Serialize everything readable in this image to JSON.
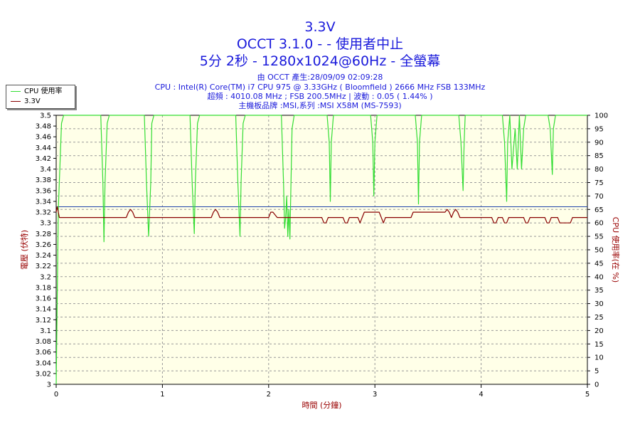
{
  "header": {
    "title": "3.3V",
    "line2": "OCCT 3.1.0 -  - 使用者中止",
    "line3": "5分 2秒 - 1280x1024@60Hz - 全螢幕",
    "info1": "由 OCCT 產生:28/09/09 02:09:28",
    "info2": "CPU : Intel(R) Core(TM) i7 CPU 975 @ 3.33GHz ( Bloomfield ) 2666 MHz FSB 133MHz",
    "info3": "超頻 : 4010.08 MHz ; FSB 200.5MHz | 波動 : 0.05 ( 1.44% )",
    "info4": "主機板品牌 :MSI,系列 :MSI X58M (MS-7593)"
  },
  "legend": {
    "cpu_label": "CPU 使用率",
    "volt_label": "3.3V"
  },
  "colors": {
    "cpu": "#33dd33",
    "volt": "#880000",
    "ref": "#2244aa",
    "title": "#1a1adb",
    "axis_label": "#990000",
    "plot_bg": "#ffffe8",
    "grid": "#999999"
  },
  "chart_data": {
    "type": "line",
    "xlabel": "時間 (分鐘)",
    "ylabel_left": "電壓 (伏特)",
    "ylabel_right": "CPU 使用率(在 %)",
    "xlim": [
      0,
      5
    ],
    "ylim_left": [
      3.0,
      3.5
    ],
    "ylim_right": [
      0,
      100
    ],
    "x_ticks": [
      "0",
      "1",
      "2",
      "3",
      "4",
      "5"
    ],
    "y_left_ticks": [
      "3",
      "3.02",
      "3.04",
      "3.06",
      "3.08",
      "3.1",
      "3.12",
      "3.14",
      "3.16",
      "3.18",
      "3.2",
      "3.22",
      "3.24",
      "3.26",
      "3.28",
      "3.3",
      "3.32",
      "3.34",
      "3.36",
      "3.38",
      "3.4",
      "3.42",
      "3.44",
      "3.46",
      "3.48",
      "3.5"
    ],
    "y_right_ticks": [
      "0",
      "5",
      "10",
      "15",
      "20",
      "25",
      "30",
      "35",
      "40",
      "45",
      "50",
      "55",
      "60",
      "65",
      "70",
      "75",
      "80",
      "85",
      "90",
      "95",
      "100"
    ],
    "grid": true,
    "reference_line": {
      "axis": "left",
      "value": 3.33
    },
    "series": [
      {
        "name": "CPU 使用率",
        "axis": "right",
        "x": [
          0,
          0.02,
          0.05,
          0.07,
          0.42,
          0.44,
          0.45,
          0.46,
          0.48,
          0.5,
          0.83,
          0.85,
          0.87,
          0.89,
          0.9,
          0.92,
          1.26,
          1.28,
          1.3,
          1.31,
          1.33,
          1.35,
          1.69,
          1.71,
          1.73,
          1.74,
          1.76,
          1.78,
          2.12,
          2.14,
          2.15,
          2.16,
          2.17,
          2.18,
          2.19,
          2.2,
          2.21,
          2.22,
          2.24,
          2.26,
          2.55,
          2.57,
          2.58,
          2.59,
          2.61,
          2.63,
          2.96,
          2.98,
          2.99,
          3.0,
          3.02,
          3.04,
          3.38,
          3.4,
          3.41,
          3.42,
          3.44,
          3.46,
          3.79,
          3.81,
          3.83,
          3.84,
          3.85,
          3.87,
          4.2,
          4.22,
          4.24,
          4.25,
          4.27,
          4.29,
          4.32,
          4.34,
          4.36,
          4.38,
          4.4,
          4.42,
          4.63,
          4.65,
          4.67,
          4.68,
          4.7,
          4.72,
          4.99,
          5.0
        ],
        "values": [
          0,
          65,
          97,
          100,
          100,
          75,
          53,
          75,
          97,
          100,
          100,
          75,
          55,
          75,
          97,
          100,
          100,
          75,
          56,
          75,
          97,
          100,
          100,
          75,
          55,
          75,
          97,
          100,
          100,
          75,
          58,
          62,
          70,
          55,
          65,
          54,
          75,
          95,
          100,
          100,
          100,
          90,
          68,
          90,
          100,
          100,
          100,
          90,
          70,
          90,
          100,
          100,
          100,
          90,
          67,
          90,
          100,
          100,
          100,
          90,
          72,
          90,
          100,
          100,
          100,
          90,
          68,
          90,
          100,
          80,
          95,
          80,
          100,
          80,
          95,
          100,
          100,
          95,
          78,
          95,
          100,
          100,
          100,
          100
        ]
      },
      {
        "name": "3.3V",
        "axis": "left",
        "x": [
          0,
          0.01,
          0.02,
          0.03,
          0.66,
          0.68,
          0.7,
          0.72,
          0.74,
          1.46,
          1.48,
          1.5,
          1.52,
          1.54,
          2.0,
          2.02,
          2.04,
          2.06,
          2.08,
          2.5,
          2.52,
          2.54,
          2.56,
          2.6,
          2.7,
          2.72,
          2.74,
          2.76,
          2.8,
          2.84,
          2.86,
          2.88,
          2.9,
          3.04,
          3.06,
          3.08,
          3.1,
          3.12,
          3.34,
          3.36,
          3.38,
          3.4,
          3.42,
          3.66,
          3.68,
          3.7,
          3.72,
          3.74,
          3.76,
          3.78,
          3.8,
          4.1,
          4.12,
          4.14,
          4.16,
          4.2,
          4.22,
          4.24,
          4.26,
          4.4,
          4.42,
          4.44,
          4.46,
          4.48,
          4.6,
          4.62,
          4.64,
          4.66,
          4.72,
          4.74,
          4.76,
          4.84,
          4.86,
          4.88,
          4.9,
          5.0
        ],
        "values": [
          3.32,
          3.33,
          3.32,
          3.31,
          3.31,
          3.32,
          3.325,
          3.32,
          3.31,
          3.31,
          3.32,
          3.325,
          3.32,
          3.31,
          3.31,
          3.32,
          3.32,
          3.315,
          3.31,
          3.31,
          3.3,
          3.3,
          3.31,
          3.31,
          3.31,
          3.3,
          3.3,
          3.31,
          3.31,
          3.31,
          3.3,
          3.31,
          3.32,
          3.32,
          3.31,
          3.3,
          3.31,
          3.31,
          3.31,
          3.32,
          3.32,
          3.32,
          3.32,
          3.32,
          3.325,
          3.32,
          3.31,
          3.32,
          3.325,
          3.32,
          3.31,
          3.31,
          3.3,
          3.3,
          3.31,
          3.31,
          3.3,
          3.3,
          3.31,
          3.31,
          3.3,
          3.3,
          3.31,
          3.31,
          3.31,
          3.3,
          3.3,
          3.31,
          3.31,
          3.3,
          3.3,
          3.3,
          3.31,
          3.31,
          3.31,
          3.31
        ]
      }
    ]
  }
}
